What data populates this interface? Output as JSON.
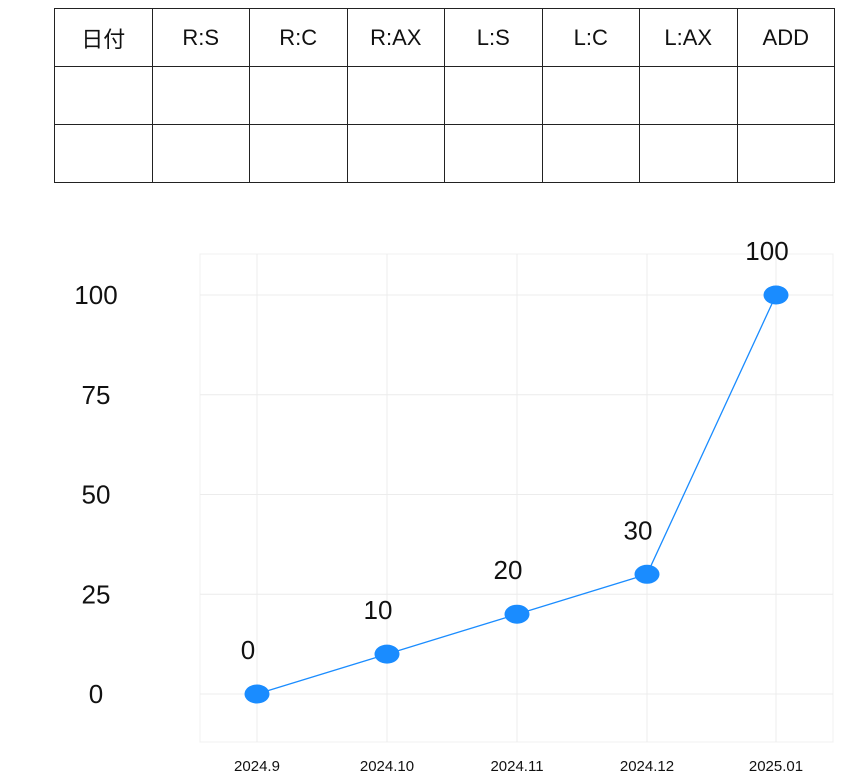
{
  "table": {
    "headers": [
      "日付",
      "R:S",
      "R:C",
      "R:AX",
      "L:S",
      "L:C",
      "L:AX",
      "ADD"
    ],
    "rows": [
      [
        "",
        "",
        "",
        "",
        "",
        "",
        "",
        ""
      ],
      [
        "",
        "",
        "",
        "",
        "",
        "",
        "",
        ""
      ]
    ]
  },
  "chart_data": {
    "type": "line",
    "x": [
      "2024.9",
      "2024.10",
      "2024.11",
      "2024.12",
      "2025.01"
    ],
    "series": [
      {
        "values": [
          0,
          10,
          20,
          30,
          100
        ],
        "color": "#1a8cff"
      }
    ],
    "y_ticks": [
      0,
      25,
      50,
      75,
      100
    ],
    "ylim": [
      0,
      100
    ],
    "data_labels": [
      "0",
      "10",
      "20",
      "30",
      "100"
    ],
    "grid": true,
    "gridline_color": "#ececec"
  }
}
